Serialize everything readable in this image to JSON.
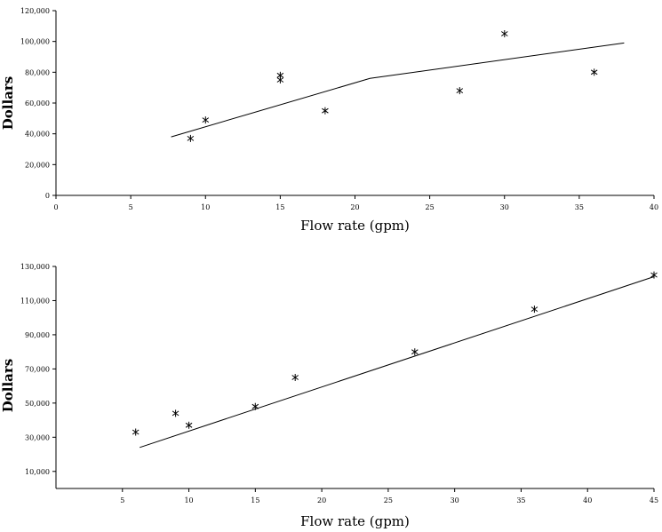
{
  "chart_data": [
    {
      "type": "scatter",
      "xlabel": "Flow rate (gpm)",
      "ylabel": "Dollars",
      "xlim": [
        0,
        40
      ],
      "ylim": [
        0,
        120000
      ],
      "xticks": [
        0,
        5,
        10,
        15,
        20,
        25,
        30,
        35,
        40
      ],
      "xtick_labels": [
        "0",
        "5",
        "10",
        "15",
        "20",
        "25",
        "30",
        "35",
        "40"
      ],
      "yticks": [
        0,
        20000,
        40000,
        60000,
        80000,
        100000,
        120000
      ],
      "ytick_labels": [
        "0",
        "20,000",
        "40,000",
        "60,000",
        "80,000",
        "100,000",
        "120,000"
      ],
      "grid": false,
      "series": [
        {
          "mode": "markers",
          "marker": "asterisk",
          "x": [
            9,
            10,
            15,
            15,
            18,
            27,
            30,
            36
          ],
          "y": [
            37000,
            49000,
            78000,
            75000,
            55000,
            68000,
            105000,
            80000
          ]
        },
        {
          "mode": "line",
          "x": [
            7.7,
            21,
            38
          ],
          "y": [
            38000,
            76000,
            99000
          ]
        }
      ]
    },
    {
      "type": "scatter",
      "xlabel": "Flow rate (gpm)",
      "ylabel": "Dollars",
      "xlim": [
        0,
        45
      ],
      "ylim": [
        0,
        130000
      ],
      "xticks": [
        5,
        10,
        15,
        20,
        25,
        30,
        35,
        40,
        45
      ],
      "xtick_labels": [
        "5",
        "10",
        "15",
        "20",
        "25",
        "30",
        "35",
        "40",
        "45"
      ],
      "yticks": [
        10000,
        30000,
        50000,
        70000,
        90000,
        110000,
        130000
      ],
      "ytick_labels": [
        "10,000",
        "30,000",
        "50,000",
        "70,000",
        "90,000",
        "110,000",
        "130,000"
      ],
      "grid": false,
      "series": [
        {
          "mode": "markers",
          "marker": "asterisk",
          "x": [
            6,
            9,
            10,
            15,
            18,
            27,
            36,
            45
          ],
          "y": [
            33000,
            44000,
            37000,
            48000,
            65000,
            80000,
            105000,
            125000
          ]
        },
        {
          "mode": "line",
          "x": [
            6.3,
            45
          ],
          "y": [
            24000,
            124000
          ]
        }
      ]
    }
  ]
}
